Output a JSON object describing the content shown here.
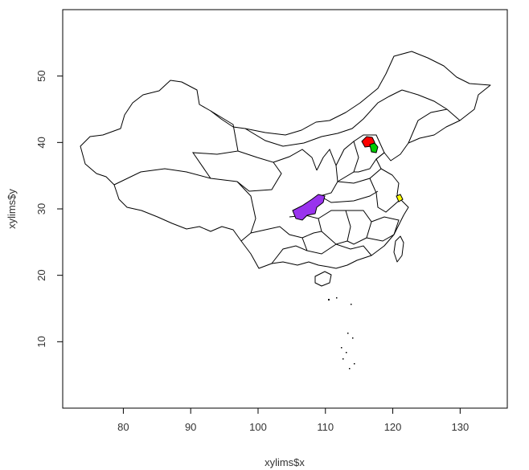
{
  "chart_data": {
    "type": "map",
    "xlabel": "xylims$x",
    "ylabel": "xylims$y",
    "x_ticks": [
      80,
      90,
      100,
      110,
      120,
      130
    ],
    "y_ticks": [
      10,
      20,
      30,
      40,
      50
    ],
    "xlim": [
      71,
      137
    ],
    "ylim": [
      0,
      60
    ],
    "highlighted_regions": [
      {
        "region": "Beijing",
        "color": "#ff0000"
      },
      {
        "region": "Tianjin",
        "color": "#00cc00"
      },
      {
        "region": "Shanghai",
        "color": "#ffff00"
      },
      {
        "region": "Chongqing",
        "color": "#9933ee"
      }
    ],
    "base_fill": "#ffffff",
    "border_color": "#000000"
  }
}
